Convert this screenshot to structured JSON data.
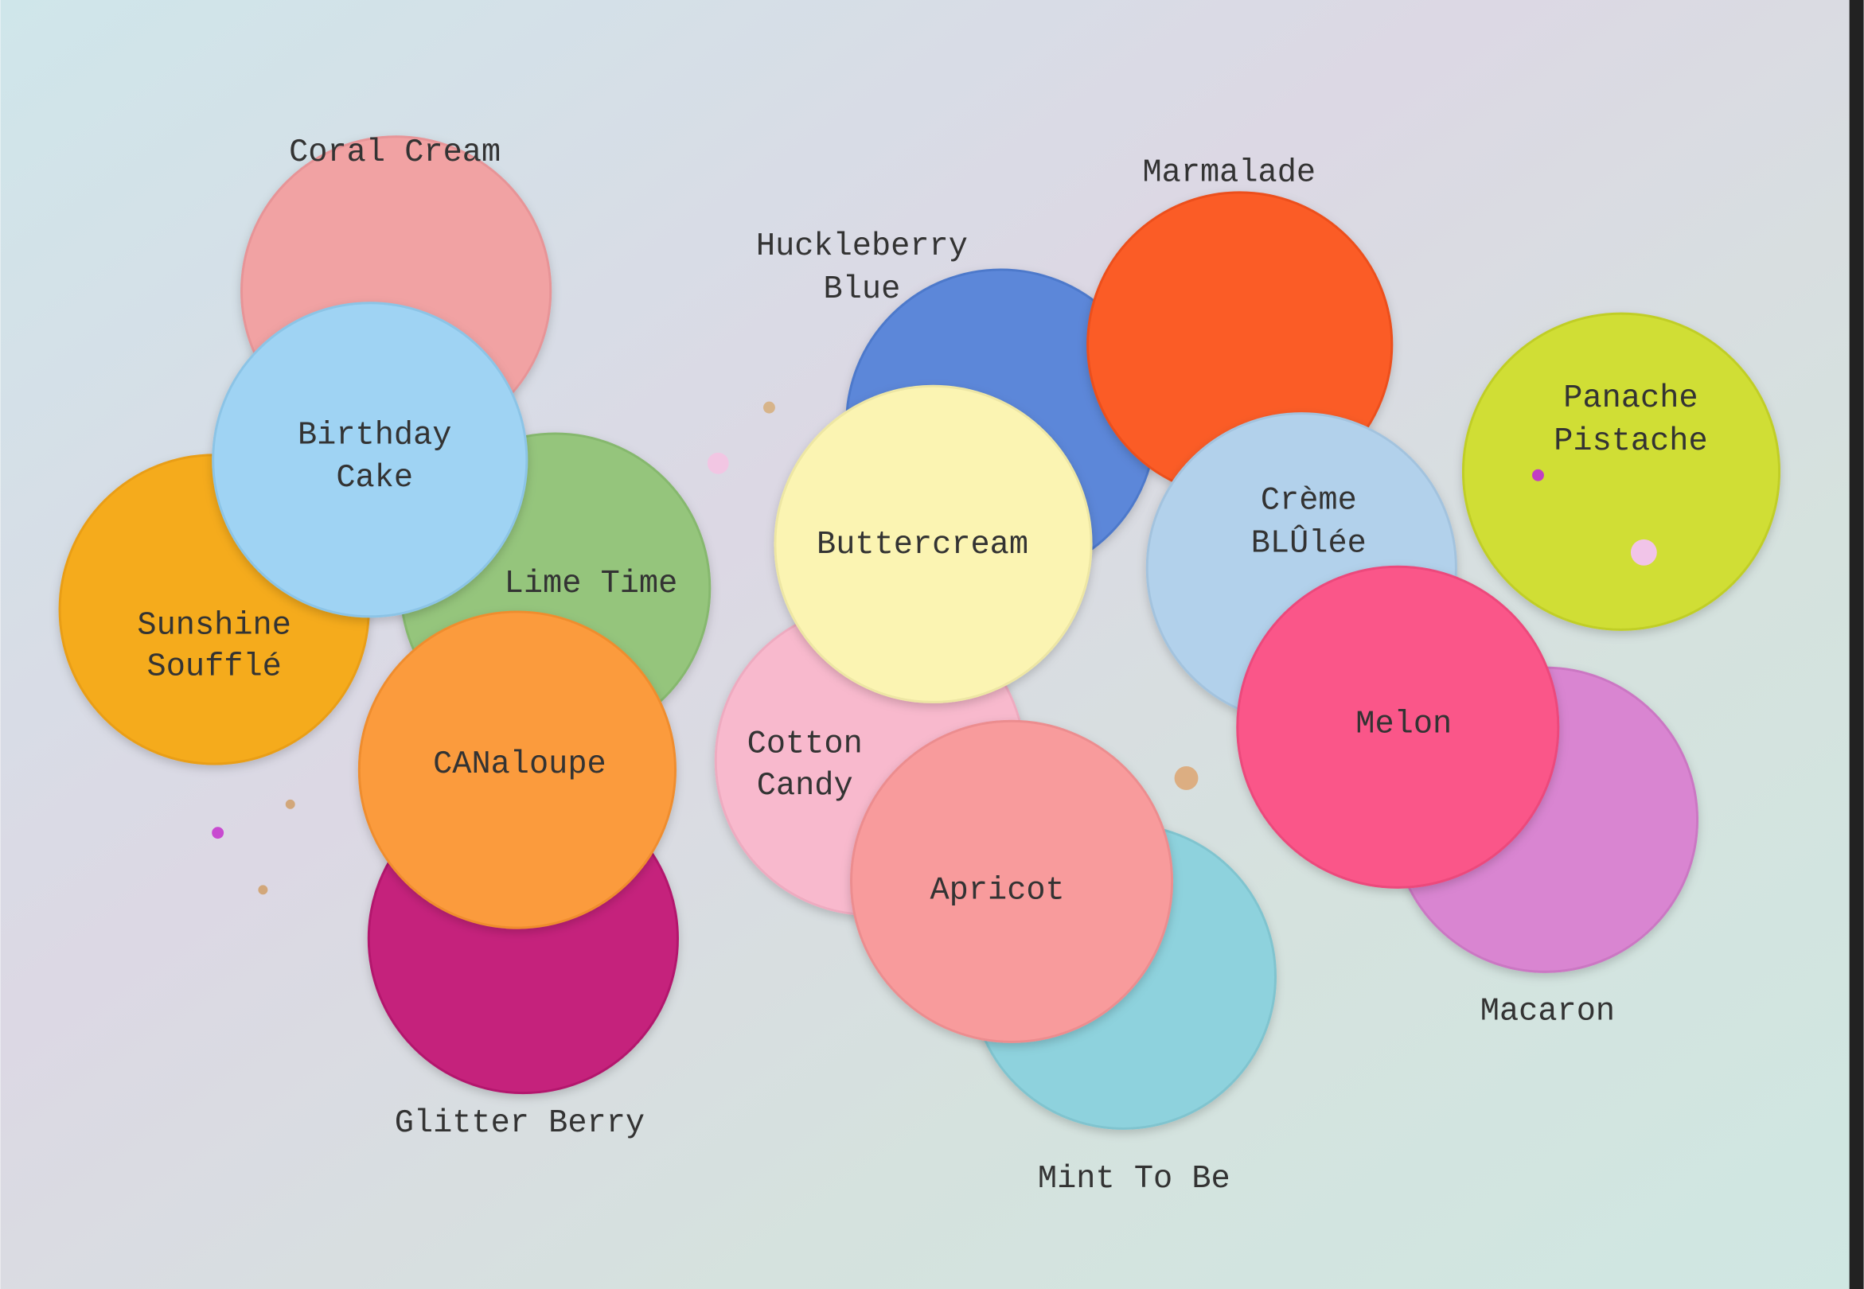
{
  "labels": [
    {
      "lines": [
        "Coral Cream"
      ]
    },
    {
      "lines": [
        "Birthday",
        "Cake"
      ]
    },
    {
      "lines": [
        "Lime Time"
      ]
    },
    {
      "lines": [
        "Sunshine",
        "Soufflé"
      ]
    },
    {
      "lines": [
        "CANaloupe"
      ]
    },
    {
      "lines": [
        "Glitter Berry"
      ]
    },
    {
      "lines": [
        "Huckleberry",
        "Blue"
      ]
    },
    {
      "lines": [
        "Marmalade"
      ]
    },
    {
      "lines": [
        "Buttercream"
      ]
    },
    {
      "lines": [
        "Cotton",
        "Candy"
      ]
    },
    {
      "lines": [
        "Apricot"
      ]
    },
    {
      "lines": [
        "Mint To Be"
      ]
    },
    {
      "lines": [
        "Crème",
        "BLÛlée"
      ]
    },
    {
      "lines": [
        "Panache",
        "Pistache"
      ]
    },
    {
      "lines": [
        "Melon"
      ]
    },
    {
      "lines": [
        "Macaron"
      ]
    }
  ]
}
